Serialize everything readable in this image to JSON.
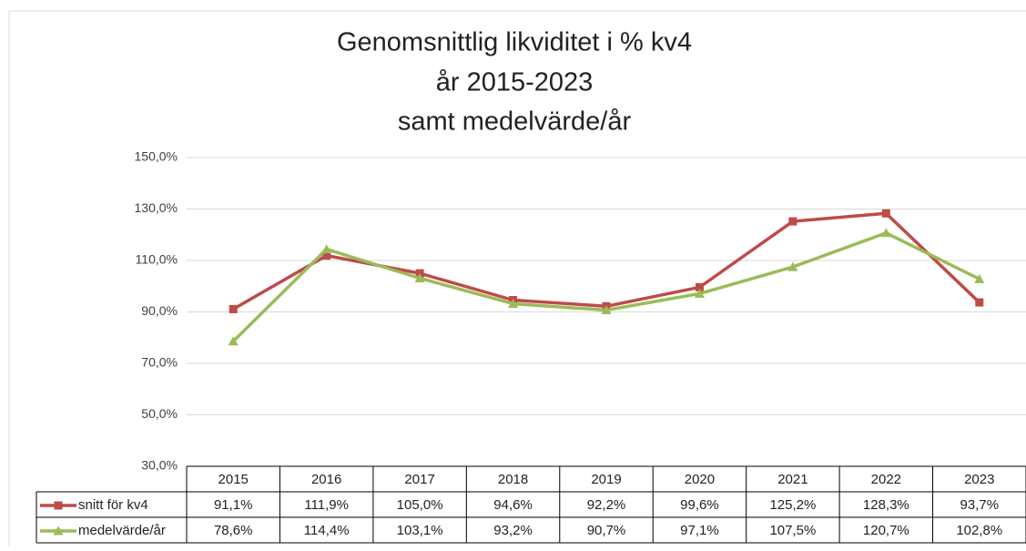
{
  "chart_data": {
    "type": "line",
    "title": [
      "Genomsnittlig likviditet i % kv4",
      "år 2015-2023",
      "samt medelvärde/år"
    ],
    "categories": [
      "2015",
      "2016",
      "2017",
      "2018",
      "2019",
      "2020",
      "2021",
      "2022",
      "2023"
    ],
    "series": [
      {
        "name": "snitt för kv4",
        "color": "#be4b48",
        "marker": "square",
        "values": [
          91.1,
          111.9,
          105.0,
          94.6,
          92.2,
          99.6,
          125.2,
          128.3,
          93.7
        ],
        "value_labels": [
          "91,1%",
          "111,9%",
          "105,0%",
          "94,6%",
          "92,2%",
          "99,6%",
          "125,2%",
          "128,3%",
          "93,7%"
        ]
      },
      {
        "name": "medelvärde/år",
        "color": "#9bbb59",
        "marker": "triangle",
        "values": [
          78.6,
          114.4,
          103.1,
          93.2,
          90.7,
          97.1,
          107.5,
          120.7,
          102.8
        ],
        "value_labels": [
          "78,6%",
          "114,4%",
          "103,1%",
          "93,2%",
          "90,7%",
          "97,1%",
          "107,5%",
          "120,7%",
          "102,8%"
        ]
      }
    ],
    "ylim": [
      30,
      150
    ],
    "yticks": [
      {
        "value": 30,
        "label": "30,0%"
      },
      {
        "value": 50,
        "label": "50,0%"
      },
      {
        "value": 70,
        "label": "70,0%"
      },
      {
        "value": 90,
        "label": "90,0%"
      },
      {
        "value": 110,
        "label": "110,0%"
      },
      {
        "value": 130,
        "label": "130,0%"
      },
      {
        "value": 150,
        "label": "150,0%"
      }
    ],
    "grid": true,
    "legend": "table"
  }
}
